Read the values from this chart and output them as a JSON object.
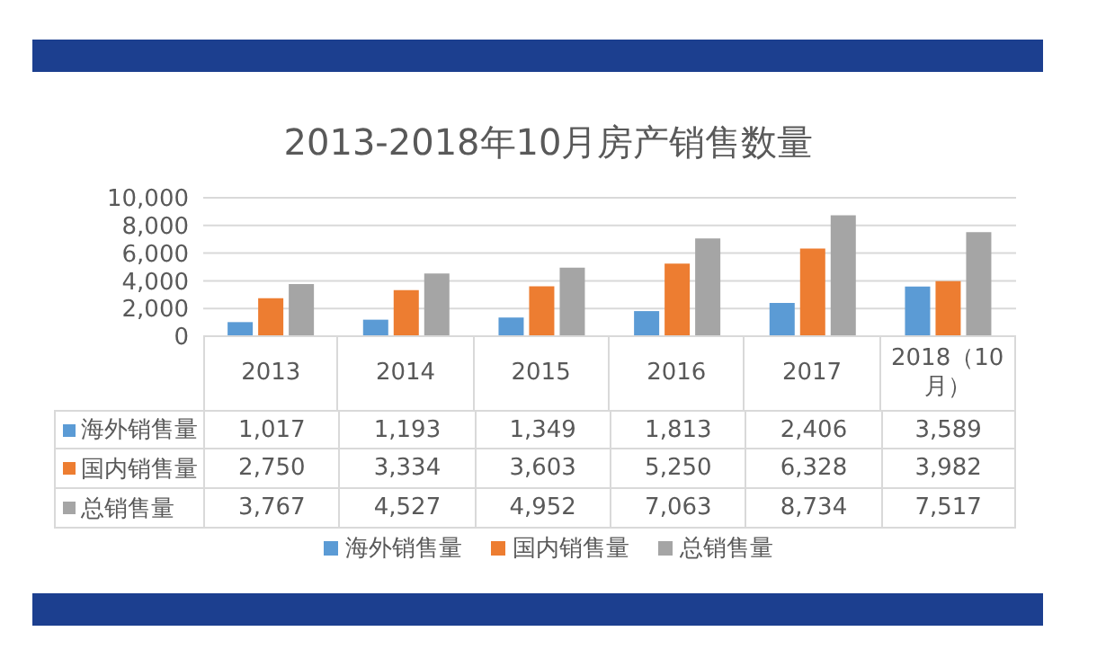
{
  "chart_data": {
    "type": "bar",
    "title": "2013-2018年10月房产销售数量",
    "categories": [
      "2013",
      "2014",
      "2015",
      "2016",
      "2017",
      "2018（10月）"
    ],
    "series": [
      {
        "name": "海外销售量",
        "color": "#5b9bd5",
        "values": [
          1017,
          1193,
          1349,
          1813,
          2406,
          3589
        ],
        "value_labels": [
          "1,017",
          "1,193",
          "1,349",
          "1,813",
          "2,406",
          "3,589"
        ]
      },
      {
        "name": "国内销售量",
        "color": "#ed7d31",
        "values": [
          2750,
          3334,
          3603,
          5250,
          6328,
          3982
        ],
        "value_labels": [
          "2,750",
          "3,334",
          "3,603",
          "5,250",
          "6,328",
          "3,982"
        ]
      },
      {
        "name": "总销售量",
        "color": "#a5a5a5",
        "values": [
          3767,
          4527,
          4952,
          7063,
          8734,
          7517
        ],
        "value_labels": [
          "3,767",
          "4,527",
          "4,952",
          "7,063",
          "8,734",
          "7,517"
        ]
      }
    ],
    "ylim": [
      0,
      10000
    ],
    "yticks": [
      {
        "value": 0,
        "label": "0"
      },
      {
        "value": 2000,
        "label": "2,000"
      },
      {
        "value": 4000,
        "label": "4,000"
      },
      {
        "value": 6000,
        "label": "6,000"
      },
      {
        "value": 8000,
        "label": "8,000"
      },
      {
        "value": 10000,
        "label": "10,000"
      }
    ],
    "grid": "y",
    "legend": "bottom"
  }
}
